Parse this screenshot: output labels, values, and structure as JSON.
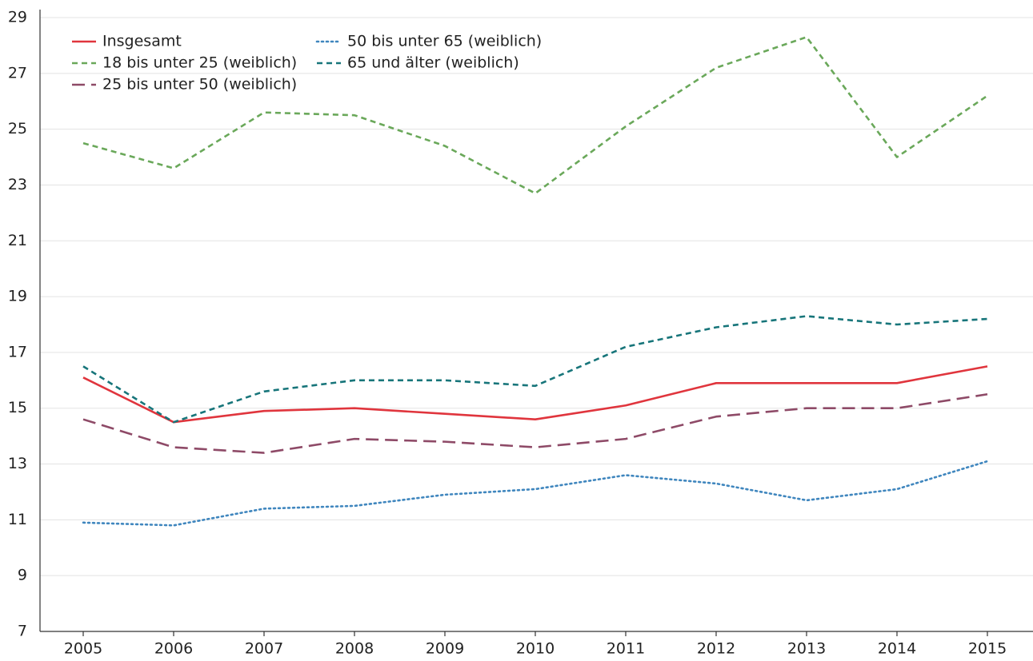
{
  "chart_data": {
    "type": "line",
    "categories": [
      "2005",
      "2006",
      "2007",
      "2008",
      "2009",
      "2010",
      "2011",
      "2012",
      "2013",
      "2014",
      "2015"
    ],
    "series": [
      {
        "name": "Insgesamt",
        "color": "#e0353d",
        "line_style": "solid",
        "values": [
          16.1,
          14.5,
          14.9,
          15.0,
          14.8,
          14.6,
          15.1,
          15.9,
          15.9,
          15.9,
          16.5
        ]
      },
      {
        "name": "18 bis unter 25 (weiblich)",
        "color": "#6aa85a",
        "line_style": "dashed",
        "values": [
          24.5,
          23.6,
          25.6,
          25.5,
          24.4,
          22.7,
          25.1,
          27.2,
          28.3,
          24.0,
          26.2
        ]
      },
      {
        "name": "25 bis unter 50 (weiblich)",
        "color": "#8e4a67",
        "line_style": "longdash",
        "values": [
          14.6,
          13.6,
          13.4,
          13.9,
          13.8,
          13.6,
          13.9,
          14.7,
          15.0,
          15.0,
          15.5
        ]
      },
      {
        "name": "50 bis unter 65 (weiblich)",
        "color": "#3f86be",
        "line_style": "dotted",
        "values": [
          10.9,
          10.8,
          11.4,
          11.5,
          11.9,
          12.1,
          12.6,
          12.3,
          11.7,
          12.1,
          13.1
        ]
      },
      {
        "name": "65 und älter (weiblich)",
        "color": "#17757a",
        "line_style": "dashed",
        "values": [
          16.5,
          14.5,
          15.6,
          16.0,
          16.0,
          15.8,
          17.2,
          17.9,
          18.3,
          18.0,
          18.2
        ]
      }
    ],
    "ylim": [
      7,
      29
    ],
    "yticks": [
      7,
      9,
      11,
      13,
      15,
      17,
      19,
      21,
      23,
      25,
      27,
      29
    ],
    "grid": true,
    "legend": "top-left"
  }
}
